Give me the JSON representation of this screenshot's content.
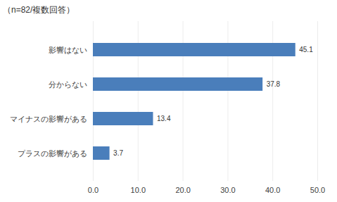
{
  "chart_data": {
    "type": "bar",
    "orientation": "horizontal",
    "subtitle": "（n=82/複数回答）",
    "categories": [
      "影響はない",
      "分からない",
      "マイナスの影響がある",
      "プラスの影響がある"
    ],
    "values": [
      45.1,
      37.8,
      13.4,
      3.7
    ],
    "color": "#4a7ebb",
    "xlim": [
      0,
      50
    ],
    "xticks": [
      {
        "value": 0,
        "label": "0.0"
      },
      {
        "value": 10,
        "label": "10.0"
      },
      {
        "value": 20,
        "label": "20.0"
      },
      {
        "value": 30,
        "label": "30.0"
      },
      {
        "value": 40,
        "label": "40.0"
      },
      {
        "value": 50,
        "label": "50.0"
      }
    ],
    "grid": true,
    "data_labels": true
  }
}
